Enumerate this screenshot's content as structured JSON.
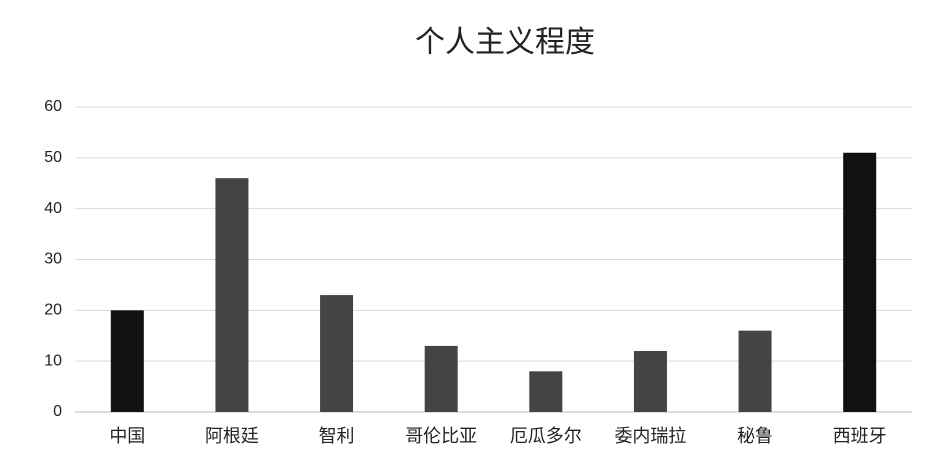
{
  "chart_data": {
    "type": "bar",
    "title": "个人主义程度",
    "categories": [
      "中国",
      "阿根廷",
      "智利",
      "哥伦比亚",
      "厄瓜多尔",
      "委内瑞拉",
      "秘鲁",
      "西班牙"
    ],
    "values": [
      20,
      46,
      23,
      13,
      8,
      12,
      16,
      51
    ],
    "colors": [
      "#111111",
      "#444444",
      "#444444",
      "#444444",
      "#444444",
      "#444444",
      "#444444",
      "#111111"
    ],
    "ylim": [
      0,
      60
    ],
    "yticks": [
      0,
      10,
      20,
      30,
      40,
      50,
      60
    ],
    "grid": true
  }
}
